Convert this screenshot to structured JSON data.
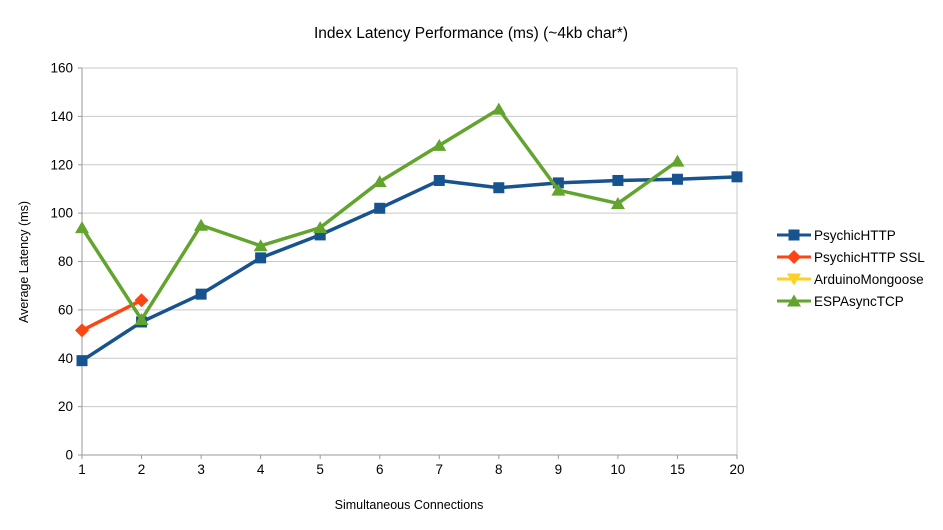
{
  "chart_data": {
    "type": "line",
    "title": "Index Latency Performance (ms) (~4kb char*)",
    "xlabel": "Simultaneous Connections",
    "ylabel": "Average Latency (ms)",
    "categories": [
      "1",
      "2",
      "3",
      "4",
      "5",
      "6",
      "7",
      "8",
      "9",
      "10",
      "15",
      "20"
    ],
    "ylim": [
      0,
      160
    ],
    "yticks": [
      0,
      20,
      40,
      60,
      80,
      100,
      120,
      140,
      160
    ],
    "grid": true,
    "legend_position": "right",
    "series": [
      {
        "name": "PsychicHTTP",
        "color": "#17538f",
        "marker": "square",
        "values": [
          39,
          55,
          66.5,
          81.5,
          91,
          102,
          113.5,
          110.5,
          112.5,
          113.5,
          114,
          115
        ]
      },
      {
        "name": "PsychicHTTP SSL",
        "color": "#fb4614",
        "marker": "diamond",
        "values": [
          51.5,
          64,
          null,
          null,
          null,
          null,
          null,
          null,
          null,
          null,
          null,
          null
        ]
      },
      {
        "name": "ArduinoMongoose",
        "color": "#fed024",
        "marker": "triangle-down",
        "values": [
          null,
          null,
          null,
          null,
          null,
          null,
          null,
          null,
          null,
          null,
          null,
          null
        ]
      },
      {
        "name": "ESPAsyncTCP",
        "color": "#62a42e",
        "marker": "triangle-up",
        "values": [
          94,
          56,
          95,
          86.5,
          94,
          113,
          128,
          143,
          109.5,
          104,
          121.5,
          null
        ]
      }
    ]
  },
  "style": {
    "gridline_color": "#c9c9c9",
    "axis_color": "#9a9a9a",
    "text_color": "#000000"
  }
}
